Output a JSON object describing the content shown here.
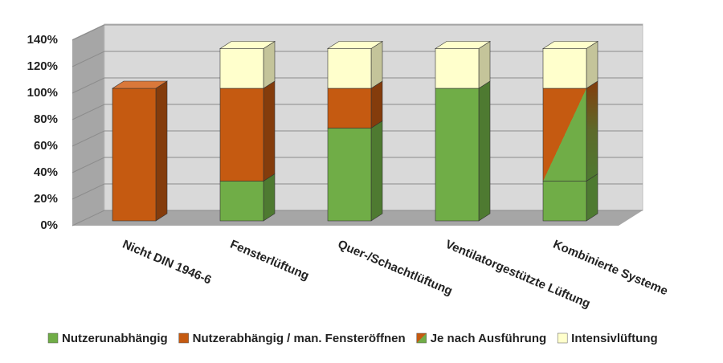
{
  "chart_data": {
    "type": "bar3d_stacked",
    "categories": [
      "Nicht DIN 1946-6",
      "Fensterlüftung",
      "Quer-/Schachtlüftung",
      "Ventilatorgestützte Lüftung",
      "Kombinierte Systeme"
    ],
    "series": [
      {
        "name": "Nutzerunabhängig",
        "color": "#70ad47",
        "values": [
          0,
          30,
          70,
          100,
          30
        ]
      },
      {
        "name": "Nutzerabhängig / man. Fensteröffnen",
        "color": "#c55a11",
        "values": [
          100,
          70,
          30,
          0,
          0
        ]
      },
      {
        "name": "Je nach Ausführung",
        "color": [
          "#c55a11",
          "#70ad47"
        ],
        "values": [
          0,
          0,
          0,
          0,
          70
        ]
      },
      {
        "name": "Intensivlüftung",
        "color": "#ffffcc",
        "values": [
          0,
          30,
          30,
          30,
          30
        ]
      }
    ],
    "ylim": [
      0,
      140
    ],
    "yticks": [
      {
        "value": 0,
        "label": "0%"
      },
      {
        "value": 20,
        "label": "20%"
      },
      {
        "value": 40,
        "label": "40%"
      },
      {
        "value": 60,
        "label": "60%"
      },
      {
        "value": 80,
        "label": "80%"
      },
      {
        "value": 100,
        "label": "100%"
      },
      {
        "value": 120,
        "label": "120%"
      },
      {
        "value": 140,
        "label": "140%"
      }
    ],
    "grid": true
  }
}
